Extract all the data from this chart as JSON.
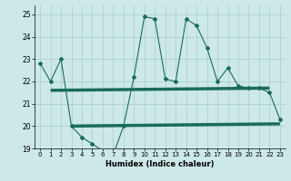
{
  "xlabel": "Humidex (Indice chaleur)",
  "background_color": "#cce8e8",
  "line_color": "#1a6b5a",
  "x_values": [
    0,
    1,
    2,
    3,
    4,
    5,
    6,
    7,
    8,
    9,
    10,
    11,
    12,
    13,
    14,
    15,
    16,
    17,
    18,
    19,
    20,
    21,
    22,
    23
  ],
  "y_main": [
    22.8,
    22.0,
    23.0,
    20.0,
    19.5,
    19.2,
    18.9,
    18.7,
    20.0,
    22.2,
    24.9,
    24.8,
    22.1,
    22.0,
    24.8,
    24.5,
    23.5,
    22.0,
    22.6,
    21.8,
    21.7,
    21.7,
    21.5,
    20.3
  ],
  "y_line1_x": [
    1,
    22
  ],
  "y_line1_y": [
    21.6,
    21.7
  ],
  "y_line2_x": [
    3,
    23
  ],
  "y_line2_y": [
    20.0,
    20.1
  ],
  "ylim": [
    19.0,
    25.4
  ],
  "xlim": [
    -0.5,
    23.5
  ],
  "yticks": [
    19,
    20,
    21,
    22,
    23,
    24,
    25
  ],
  "xticks": [
    0,
    1,
    2,
    3,
    4,
    5,
    6,
    7,
    8,
    9,
    10,
    11,
    12,
    13,
    14,
    15,
    16,
    17,
    18,
    19,
    20,
    21,
    22,
    23
  ]
}
